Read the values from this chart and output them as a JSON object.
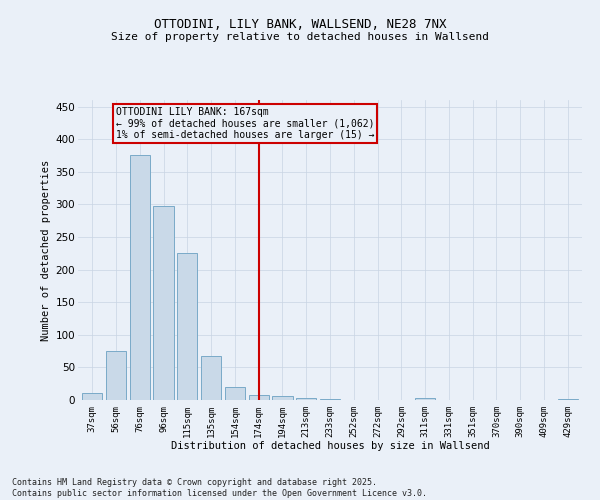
{
  "title1": "OTTODINI, LILY BANK, WALLSEND, NE28 7NX",
  "title2": "Size of property relative to detached houses in Wallsend",
  "xlabel": "Distribution of detached houses by size in Wallsend",
  "ylabel": "Number of detached properties",
  "categories": [
    "37sqm",
    "56sqm",
    "76sqm",
    "96sqm",
    "115sqm",
    "135sqm",
    "154sqm",
    "174sqm",
    "194sqm",
    "213sqm",
    "233sqm",
    "252sqm",
    "272sqm",
    "292sqm",
    "311sqm",
    "331sqm",
    "351sqm",
    "370sqm",
    "390sqm",
    "409sqm",
    "429sqm"
  ],
  "values": [
    10,
    75,
    375,
    298,
    225,
    68,
    20,
    8,
    6,
    3,
    1,
    0,
    0,
    0,
    3,
    0,
    0,
    0,
    0,
    0,
    2
  ],
  "bar_color": "#c9d9e8",
  "bar_edge_color": "#7aaac8",
  "ylim": [
    0,
    460
  ],
  "yticks": [
    0,
    50,
    100,
    150,
    200,
    250,
    300,
    350,
    400,
    450
  ],
  "vline_color": "#cc0000",
  "annotation_text": "OTTODINI LILY BANK: 167sqm\n← 99% of detached houses are smaller (1,062)\n1% of semi-detached houses are larger (15) →",
  "annotation_box_color": "#cc0000",
  "bg_color": "#eaf0f8",
  "footer": "Contains HM Land Registry data © Crown copyright and database right 2025.\nContains public sector information licensed under the Open Government Licence v3.0."
}
